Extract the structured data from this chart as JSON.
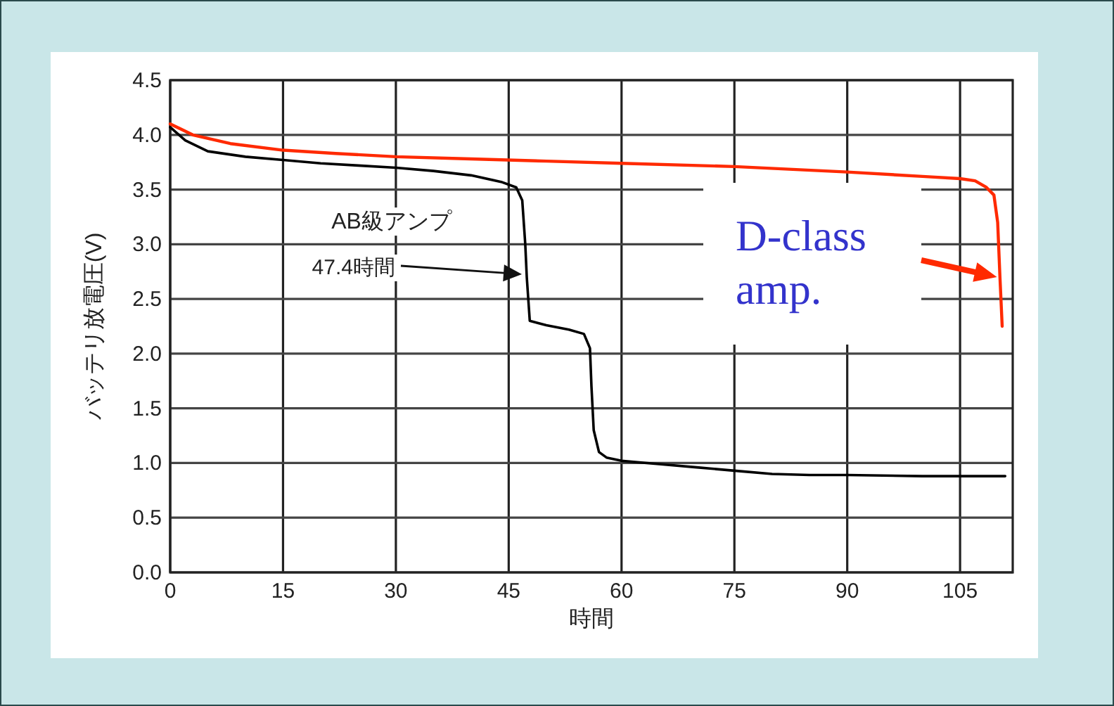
{
  "chart_data": {
    "type": "line",
    "xlabel": "時間",
    "ylabel": "バッテリ放電圧(V)",
    "xlim": [
      0,
      112
    ],
    "xticks": [
      0,
      15,
      30,
      45,
      60,
      75,
      90,
      105
    ],
    "ylim": [
      0,
      4.5
    ],
    "yticks": [
      {
        "value": 0,
        "label": "0.0"
      },
      0.5,
      {
        "value": 1,
        "label": "1.0"
      },
      1.5,
      {
        "value": 2,
        "label": "2.0"
      },
      2.5,
      {
        "value": 3,
        "label": "3.0"
      },
      3.5,
      {
        "value": 4,
        "label": "4.0"
      },
      4.5
    ],
    "grid": true,
    "legend": "right",
    "marker": "none",
    "line_style": "solid",
    "series": [
      {
        "name": "AB級アンプ",
        "color": "#000000",
        "x": [
          0,
          2,
          5,
          10,
          15,
          20,
          25,
          30,
          35,
          40,
          44,
          46,
          46.8,
          47.2,
          47.4,
          47.8,
          50,
          53,
          55,
          55.8,
          56,
          56.3,
          57,
          58,
          60,
          65,
          70,
          75,
          80,
          85,
          90,
          100,
          105,
          111
        ],
        "values": [
          4.07,
          3.95,
          3.85,
          3.8,
          3.77,
          3.74,
          3.72,
          3.7,
          3.67,
          3.63,
          3.57,
          3.52,
          3.4,
          3.0,
          2.7,
          2.3,
          2.26,
          2.22,
          2.18,
          2.05,
          1.7,
          1.3,
          1.1,
          1.05,
          1.02,
          0.99,
          0.96,
          0.93,
          0.9,
          0.89,
          0.89,
          0.88,
          0.88,
          0.88
        ]
      },
      {
        "name": "D-class amp.",
        "color": "#ff2a00",
        "x": [
          0,
          3,
          8,
          15,
          22,
          30,
          40,
          50,
          60,
          75,
          90,
          100,
          105,
          107,
          108.5,
          109.5,
          110,
          110.3,
          110.6
        ],
        "values": [
          4.1,
          4.0,
          3.92,
          3.86,
          3.83,
          3.8,
          3.78,
          3.76,
          3.74,
          3.71,
          3.66,
          3.62,
          3.6,
          3.58,
          3.52,
          3.45,
          3.2,
          2.7,
          2.25
        ]
      }
    ],
    "annotations": [
      "47.4時間"
    ]
  }
}
